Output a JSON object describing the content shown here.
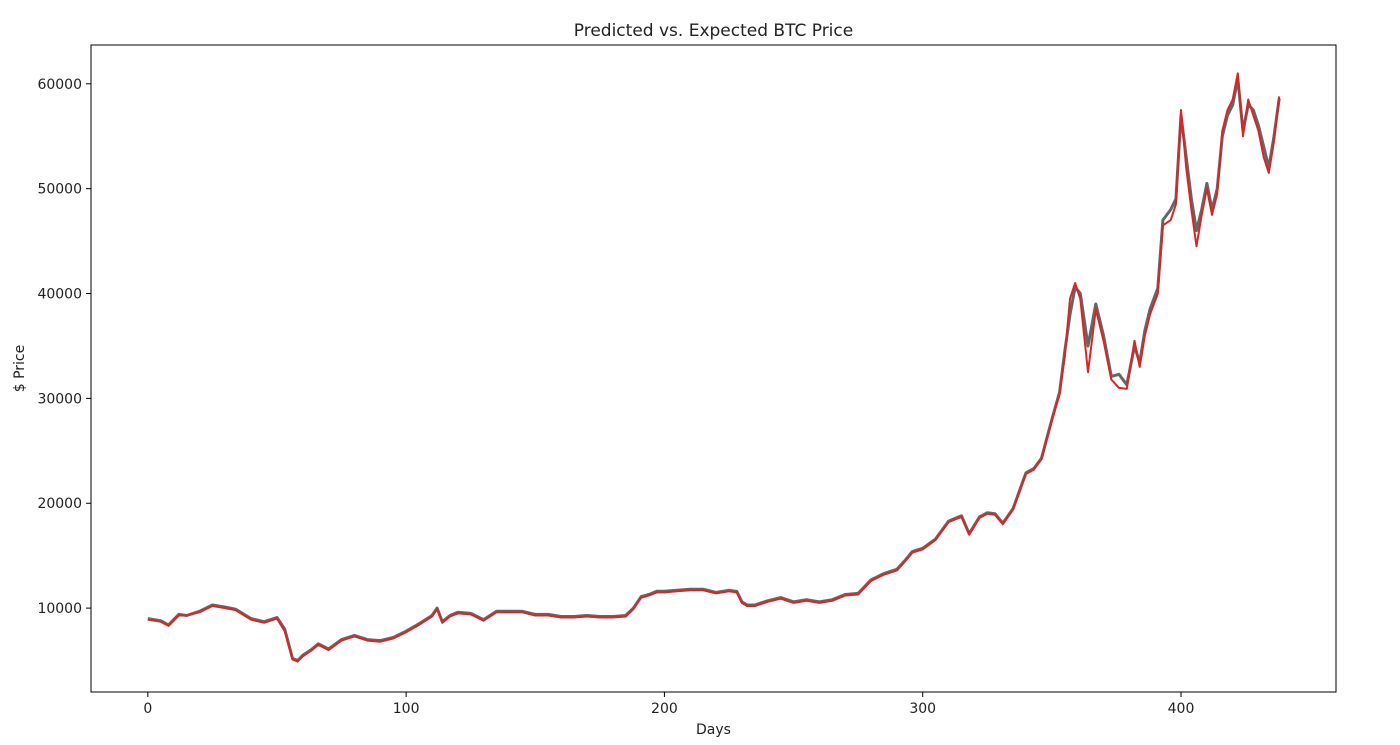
{
  "chart_data": {
    "type": "line",
    "title": "Predicted vs. Expected BTC Price",
    "xlabel": "Days",
    "ylabel": "$ Price",
    "xlim": [
      -22,
      460
    ],
    "ylim": [
      2000,
      63700
    ],
    "x_ticks": [
      0,
      100,
      200,
      300,
      400
    ],
    "x_tick_labels": [
      "0",
      "100",
      "200",
      "300",
      "400"
    ],
    "y_ticks": [
      10000,
      20000,
      30000,
      40000,
      50000,
      60000
    ],
    "y_tick_labels": [
      "10000",
      "20000",
      "30000",
      "40000",
      "50000",
      "60000"
    ],
    "grid": false,
    "legend": "none",
    "series": [
      {
        "color": "#666666",
        "x": [
          0,
          5,
          8,
          12,
          15,
          20,
          25,
          30,
          34,
          40,
          45,
          50,
          53,
          56,
          58,
          60,
          63,
          66,
          70,
          75,
          80,
          85,
          90,
          95,
          100,
          105,
          110,
          112,
          114,
          117,
          120,
          125,
          130,
          135,
          140,
          145,
          150,
          155,
          160,
          165,
          170,
          175,
          180,
          185,
          188,
          191,
          194,
          197,
          200,
          205,
          210,
          215,
          220,
          225,
          228,
          230,
          232,
          235,
          240,
          245,
          250,
          255,
          260,
          265,
          270,
          275,
          280,
          285,
          290,
          293,
          296,
          300,
          305,
          310,
          313,
          315,
          318,
          322,
          325,
          328,
          331,
          335,
          340,
          343,
          346,
          350,
          353,
          355,
          357,
          359,
          361,
          364,
          367,
          370,
          373,
          376,
          379,
          382,
          384,
          386,
          388,
          391,
          393,
          396,
          398,
          400,
          402,
          404,
          406,
          408,
          410,
          412,
          414,
          416,
          418,
          420,
          422,
          424,
          426,
          428,
          430,
          432,
          434,
          436,
          438
        ],
        "y": [
          9000,
          8800,
          8400,
          9400,
          9300,
          9700,
          10300,
          10100,
          9900,
          9000,
          8700,
          9100,
          8000,
          5200,
          5000,
          5500,
          6000,
          6600,
          6100,
          7000,
          7400,
          7000,
          6900,
          7200,
          7800,
          8500,
          9300,
          10000,
          8700,
          9300,
          9600,
          9500,
          8900,
          9700,
          9700,
          9700,
          9400,
          9400,
          9200,
          9200,
          9300,
          9200,
          9200,
          9300,
          10000,
          11100,
          11300,
          11600,
          11600,
          11700,
          11800,
          11800,
          11500,
          11700,
          11600,
          10600,
          10300,
          10300,
          10700,
          11000,
          10600,
          10800,
          10600,
          10800,
          11300,
          11400,
          12700,
          13300,
          13700,
          14500,
          15400,
          15700,
          16600,
          18300,
          18600,
          18800,
          17100,
          18700,
          19100,
          19000,
          18100,
          19500,
          22900,
          23300,
          24300,
          28000,
          30600,
          34500,
          38000,
          40600,
          40000,
          35000,
          39000,
          36000,
          32100,
          32300,
          31300,
          35000,
          33400,
          36500,
          38500,
          40500,
          47000,
          48000,
          49000,
          57000,
          53000,
          49000,
          46000,
          48000,
          50500,
          48000,
          50000,
          55000,
          57000,
          58000,
          60500,
          55500,
          58000,
          57500,
          56000,
          54000,
          52000,
          55000,
          58600
        ]
      },
      {
        "color": "#d62728",
        "x": [
          0,
          5,
          8,
          12,
          15,
          20,
          25,
          30,
          34,
          40,
          45,
          50,
          53,
          56,
          58,
          60,
          63,
          66,
          70,
          75,
          80,
          85,
          90,
          95,
          100,
          105,
          110,
          112,
          114,
          117,
          120,
          125,
          130,
          135,
          140,
          145,
          150,
          155,
          160,
          165,
          170,
          175,
          180,
          185,
          188,
          191,
          194,
          197,
          200,
          205,
          210,
          215,
          220,
          225,
          228,
          230,
          232,
          235,
          240,
          245,
          250,
          255,
          260,
          265,
          270,
          275,
          280,
          285,
          290,
          293,
          296,
          300,
          305,
          310,
          313,
          315,
          318,
          322,
          325,
          328,
          331,
          335,
          340,
          343,
          346,
          350,
          353,
          355,
          357,
          359,
          361,
          364,
          367,
          370,
          373,
          376,
          379,
          382,
          384,
          386,
          388,
          391,
          393,
          396,
          398,
          400,
          402,
          404,
          406,
          408,
          410,
          412,
          414,
          416,
          418,
          420,
          422,
          424,
          426,
          428,
          430,
          432,
          434,
          436,
          438
        ],
        "y": [
          8900,
          8700,
          8300,
          9300,
          9300,
          9600,
          10200,
          10000,
          9800,
          8900,
          8600,
          9000,
          7800,
          5100,
          4900,
          5400,
          5900,
          6500,
          6000,
          6900,
          7300,
          6900,
          6800,
          7100,
          7700,
          8400,
          9200,
          9900,
          8600,
          9200,
          9500,
          9400,
          8800,
          9600,
          9600,
          9600,
          9300,
          9300,
          9100,
          9100,
          9200,
          9100,
          9100,
          9200,
          9900,
          11000,
          11200,
          11500,
          11500,
          11600,
          11700,
          11700,
          11400,
          11600,
          11500,
          10500,
          10200,
          10200,
          10600,
          10900,
          10500,
          10700,
          10500,
          10700,
          11200,
          11300,
          12600,
          13200,
          13600,
          14400,
          15300,
          15600,
          16500,
          18200,
          18500,
          18700,
          17000,
          18600,
          19000,
          18900,
          18000,
          19400,
          22800,
          23200,
          24200,
          27900,
          30400,
          34000,
          39500,
          41000,
          39500,
          32500,
          38500,
          35500,
          31800,
          31000,
          30900,
          35500,
          33000,
          36000,
          38000,
          40000,
          46500,
          47000,
          48500,
          57500,
          52000,
          48000,
          44500,
          47500,
          50000,
          47500,
          49500,
          55500,
          57500,
          58500,
          61000,
          55000,
          58500,
          57000,
          55500,
          53000,
          51500,
          54500,
          58800
        ]
      }
    ]
  }
}
